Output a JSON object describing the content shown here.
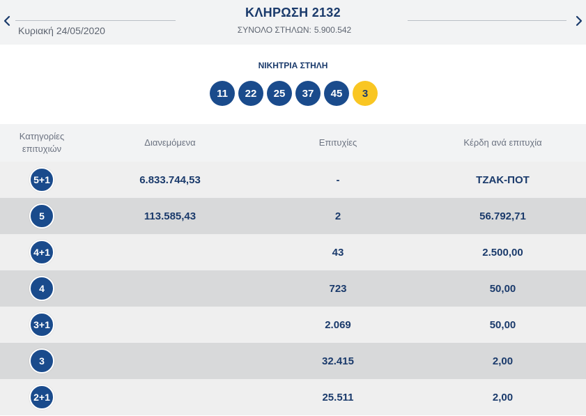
{
  "header": {
    "date": "Κυριακή 24/05/2020",
    "draw_title": "ΚΛΗΡΩΣΗ 2132",
    "total_columns_label": "ΣΥΝΟΛΟ ΣΤΗΛΩΝ:",
    "total_columns_value": "5.900.542",
    "prev_icon": "chevron-left-icon",
    "next_icon": "chevron-right-icon"
  },
  "winning": {
    "label": "ΝΙΚΗΤΡΙΑ ΣΤΗΛΗ",
    "numbers": [
      "11",
      "22",
      "25",
      "37",
      "45"
    ],
    "joker": "3"
  },
  "table": {
    "headers": {
      "category": "Κατηγορίες επιτυχιών",
      "distributed": "Διανεμόμενα",
      "winners": "Επιτυχίες",
      "prize": "Κέρδη ανά επιτυχία"
    },
    "rows": [
      {
        "category": "5+1",
        "distributed": "6.833.744,53",
        "winners": "-",
        "prize": "ΤΖΑΚ-ΠΟΤ"
      },
      {
        "category": "5",
        "distributed": "113.585,43",
        "winners": "2",
        "prize": "56.792,71"
      },
      {
        "category": "4+1",
        "distributed": "",
        "winners": "43",
        "prize": "2.500,00"
      },
      {
        "category": "4",
        "distributed": "",
        "winners": "723",
        "prize": "50,00"
      },
      {
        "category": "3+1",
        "distributed": "",
        "winners": "2.069",
        "prize": "50,00"
      },
      {
        "category": "3",
        "distributed": "",
        "winners": "32.415",
        "prize": "2,00"
      },
      {
        "category": "2+1",
        "distributed": "",
        "winners": "25.511",
        "prize": "2,00"
      }
    ]
  },
  "colors": {
    "primary_blue": "#1a4b8c",
    "joker_yellow": "#f9c623",
    "row_light": "#efefef",
    "row_dark": "#d8d9da"
  }
}
